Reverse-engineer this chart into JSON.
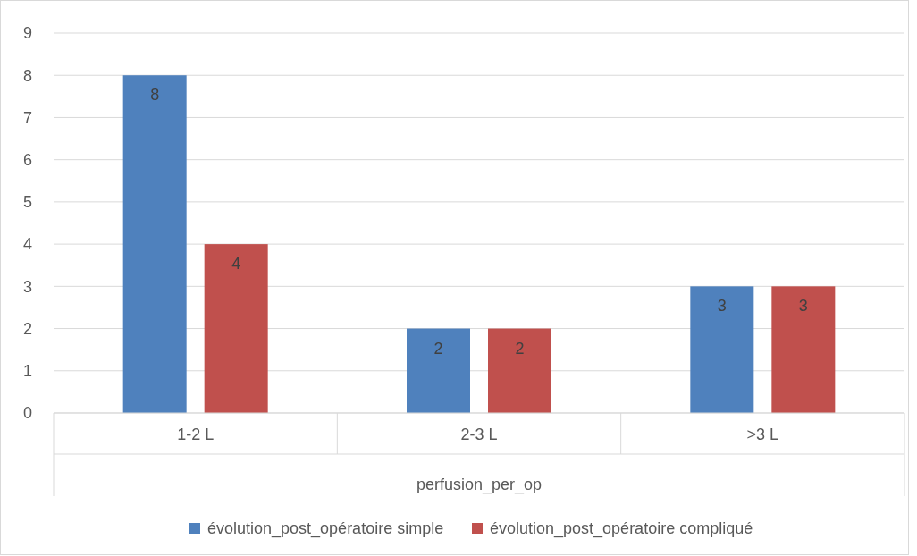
{
  "chart_data": {
    "type": "bar",
    "xlabel": "perfusion_per_op",
    "categories": [
      "1-2 L",
      "2-3 L",
      ">3 L"
    ],
    "series": [
      {
        "name": "évolution_post_opératoire simple",
        "color": "#4f81bd",
        "values": [
          8,
          2,
          3
        ]
      },
      {
        "name": "évolution_post_opératoire compliqué",
        "color": "#c0504d",
        "values": [
          4,
          2,
          3
        ]
      }
    ],
    "ylim": [
      0,
      9
    ],
    "yticks": [
      0,
      1,
      2,
      3,
      4,
      5,
      6,
      7,
      8,
      9
    ],
    "grid": "y",
    "legend": "bottom",
    "data_labels": true
  }
}
